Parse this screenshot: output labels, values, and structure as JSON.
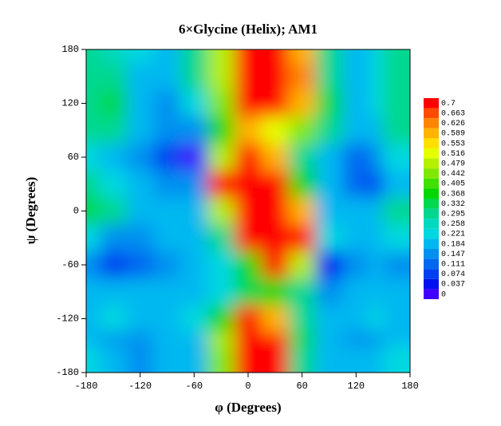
{
  "chart_data": {
    "type": "contour",
    "title": "6×Glycine (Helix); AM1",
    "x_label": "φ (Degrees)",
    "y_label": "ψ (Degrees)",
    "x": [
      -180,
      -150,
      -120,
      -90,
      -60,
      -30,
      0,
      30,
      60,
      90,
      120,
      150,
      180
    ],
    "y": [
      180,
      150,
      120,
      90,
      60,
      30,
      0,
      -30,
      -60,
      -90,
      -120,
      -150,
      -180
    ],
    "z": [
      [
        0.3,
        0.28,
        0.25,
        0.22,
        0.3,
        0.5,
        0.75,
        0.75,
        0.6,
        0.3,
        0.22,
        0.24,
        0.3
      ],
      [
        0.3,
        0.3,
        0.22,
        0.2,
        0.3,
        0.5,
        0.75,
        0.75,
        0.65,
        0.3,
        0.22,
        0.25,
        0.3
      ],
      [
        0.33,
        0.35,
        0.22,
        0.18,
        0.25,
        0.45,
        0.7,
        0.75,
        0.6,
        0.35,
        0.22,
        0.24,
        0.32
      ],
      [
        0.3,
        0.3,
        0.2,
        0.15,
        0.15,
        0.4,
        0.6,
        0.55,
        0.45,
        0.3,
        0.2,
        0.2,
        0.3
      ],
      [
        0.25,
        0.22,
        0.18,
        0.1,
        0.03,
        0.5,
        0.75,
        0.6,
        0.3,
        0.2,
        0.12,
        0.15,
        0.25
      ],
      [
        0.3,
        0.25,
        0.22,
        0.18,
        0.15,
        0.7,
        0.75,
        0.75,
        0.4,
        0.2,
        0.12,
        0.08,
        0.2
      ],
      [
        0.35,
        0.3,
        0.2,
        0.2,
        0.22,
        0.5,
        0.75,
        0.75,
        0.6,
        0.22,
        0.2,
        0.2,
        0.3
      ],
      [
        0.25,
        0.15,
        0.15,
        0.2,
        0.22,
        0.3,
        0.7,
        0.75,
        0.7,
        0.25,
        0.2,
        0.22,
        0.25
      ],
      [
        0.15,
        0.1,
        0.12,
        0.18,
        0.2,
        0.25,
        0.4,
        0.7,
        0.5,
        0.05,
        0.15,
        0.2,
        0.15
      ],
      [
        0.2,
        0.2,
        0.2,
        0.22,
        0.22,
        0.25,
        0.35,
        0.4,
        0.3,
        0.15,
        0.2,
        0.22,
        0.2
      ],
      [
        0.22,
        0.24,
        0.2,
        0.22,
        0.25,
        0.4,
        0.75,
        0.6,
        0.3,
        0.22,
        0.22,
        0.24,
        0.22
      ],
      [
        0.2,
        0.15,
        0.15,
        0.2,
        0.22,
        0.5,
        0.75,
        0.75,
        0.35,
        0.22,
        0.18,
        0.18,
        0.2
      ],
      [
        0.25,
        0.2,
        0.18,
        0.2,
        0.22,
        0.45,
        0.75,
        0.7,
        0.3,
        0.22,
        0.2,
        0.22,
        0.25
      ]
    ],
    "xlim": [
      -180,
      180
    ],
    "ylim": [
      -180,
      180
    ],
    "xticks": [
      -180,
      -120,
      -60,
      0,
      60,
      120,
      180
    ],
    "yticks": [
      -180,
      -120,
      -60,
      0,
      60,
      120,
      180
    ],
    "colorbar": {
      "levels": [
        0.7,
        0.663,
        0.626,
        0.589,
        0.553,
        0.516,
        0.479,
        0.442,
        0.405,
        0.368,
        0.332,
        0.295,
        0.258,
        0.221,
        0.184,
        0.147,
        0.111,
        0.074,
        0.037,
        0
      ],
      "colors": [
        "#ff0000",
        "#ff4a00",
        "#ff8400",
        "#ffb400",
        "#ffe000",
        "#e6ff00",
        "#b4f000",
        "#80e800",
        "#40e000",
        "#00d800",
        "#00d850",
        "#00d890",
        "#00d8c0",
        "#00d8e0",
        "#00b8f0",
        "#0090f0",
        "#0068f0",
        "#0040f0",
        "#0010f0",
        "#4000ff"
      ]
    }
  }
}
